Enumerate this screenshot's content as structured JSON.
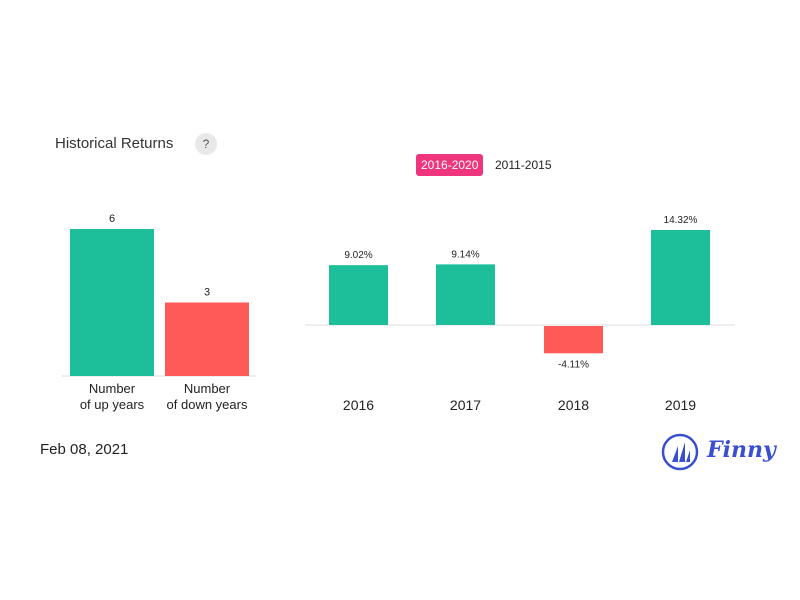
{
  "header": {
    "title": "Historical Returns",
    "help_icon": "?"
  },
  "tabs": [
    {
      "label": "2016-2020",
      "active": true
    },
    {
      "label": "2011-2015",
      "active": false
    }
  ],
  "colors": {
    "positive": "#1dbf9a",
    "negative": "#ff5a57",
    "accent": "#f0357f",
    "brand": "#3a4fd0"
  },
  "chart_data": [
    {
      "type": "bar",
      "categories": [
        "Number\nof up years",
        "Number\nof down years"
      ],
      "values": [
        6,
        3
      ],
      "value_labels": [
        "6",
        "3"
      ],
      "ylim": [
        0,
        6
      ]
    },
    {
      "type": "bar",
      "categories": [
        "2016",
        "2017",
        "2018",
        "2019"
      ],
      "values": [
        9.02,
        9.14,
        -4.11,
        14.32
      ],
      "value_labels": [
        "9.02%",
        "9.14%",
        "-4.11%",
        "14.32%"
      ],
      "unit": "%"
    }
  ],
  "footer": {
    "date": "Feb 08, 2021",
    "brand": "Finny"
  }
}
